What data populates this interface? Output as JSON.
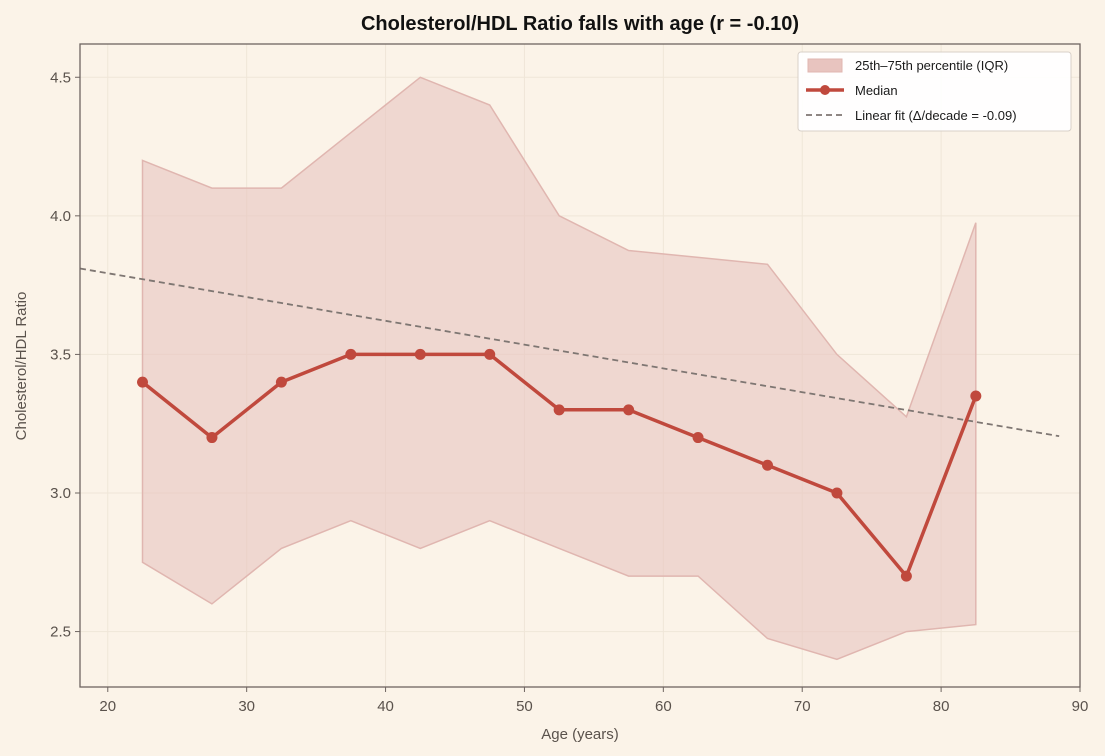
{
  "chart_data": {
    "type": "line",
    "title": "Cholesterol/HDL Ratio falls with age (r = -0.10)",
    "xlabel": "Age (years)",
    "ylabel": "Cholesterol/HDL Ratio",
    "xlim": [
      18,
      90
    ],
    "ylim": [
      2.3,
      4.62
    ],
    "xticks": [
      20,
      30,
      40,
      50,
      60,
      70,
      80,
      90
    ],
    "yticks": [
      2.5,
      3.0,
      3.5,
      4.0,
      4.5
    ],
    "xtick_labels": [
      "20",
      "30",
      "40",
      "50",
      "60",
      "70",
      "80",
      "90"
    ],
    "ytick_labels": [
      "2.5",
      "3.0",
      "3.5",
      "4.0",
      "4.5"
    ],
    "grid": true,
    "legend_position": "top-right",
    "x": [
      22.5,
      27.5,
      32.5,
      37.5,
      42.5,
      47.5,
      52.5,
      57.5,
      62.5,
      67.5,
      72.5,
      77.5,
      82.5
    ],
    "series": [
      {
        "name": "25th–75th percentile (IQR)",
        "kind": "band",
        "lower": [
          2.75,
          2.6,
          2.8,
          2.9,
          2.8,
          2.9,
          2.8,
          2.7,
          2.7,
          2.475,
          2.4,
          2.5,
          2.525
        ],
        "upper": [
          4.2,
          4.1,
          4.1,
          4.3,
          4.5,
          4.4,
          4.0,
          3.875,
          3.85,
          3.825,
          3.5,
          3.275,
          3.975
        ],
        "color": "#e8c4bf"
      },
      {
        "name": "Median",
        "kind": "line-markers",
        "values": [
          3.4,
          3.2,
          3.4,
          3.5,
          3.5,
          3.5,
          3.3,
          3.3,
          3.2,
          3.1,
          3.0,
          2.7,
          3.35
        ],
        "color": "#c0493d"
      },
      {
        "name": "Linear fit (Δ/decade = -0.09)",
        "kind": "dashed-line",
        "x": [
          18,
          88.5
        ],
        "values": [
          3.81,
          3.205
        ],
        "color": "#7e7672"
      }
    ]
  }
}
